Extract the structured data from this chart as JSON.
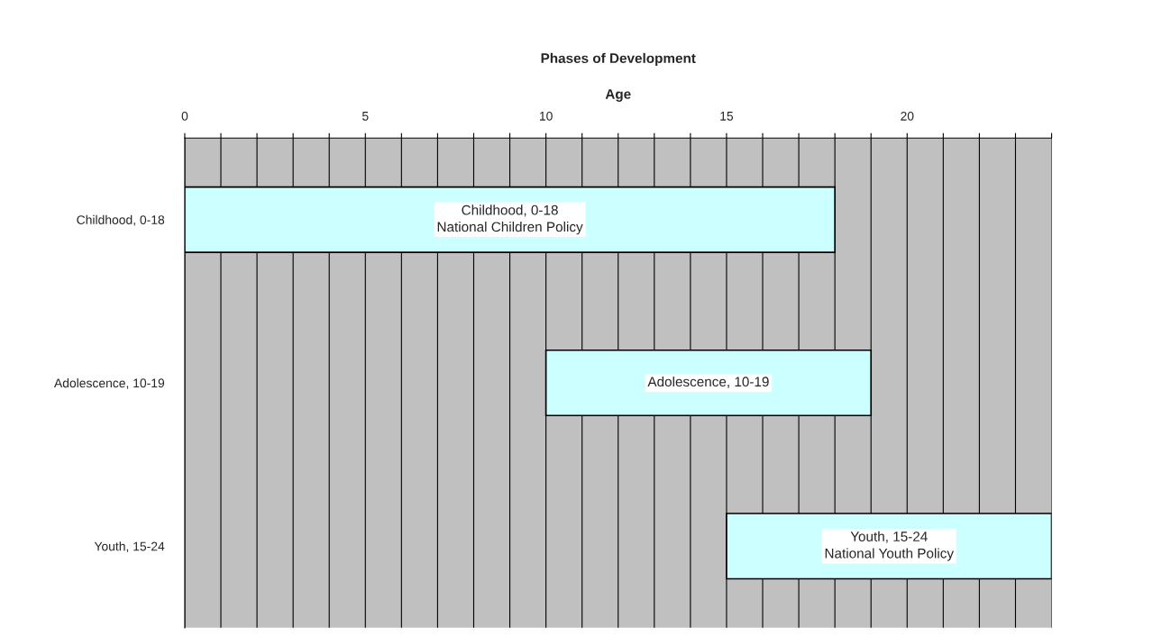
{
  "chart_data": {
    "type": "bar",
    "orientation": "horizontal",
    "title": "Phases of Development",
    "xlabel": "Age",
    "categories": [
      "Childhood, 0-18",
      "Adolescence, 10-19",
      "Youth, 15-24"
    ],
    "base": [
      0,
      10,
      15
    ],
    "values": [
      18,
      9,
      9
    ],
    "color": "#ccffff",
    "xlim": [
      0,
      24
    ],
    "xticks": [
      0,
      {
        "value": 1,
        "label": null
      },
      {
        "value": 2,
        "label": null
      },
      {
        "value": 3,
        "label": null
      },
      {
        "value": 4,
        "label": null
      },
      5,
      {
        "value": 6,
        "label": null
      },
      {
        "value": 7,
        "label": null
      },
      {
        "value": 8,
        "label": null
      },
      {
        "value": 9,
        "label": null
      },
      10,
      {
        "value": 11,
        "label": null
      },
      {
        "value": 12,
        "label": null
      },
      {
        "value": 13,
        "label": null
      },
      {
        "value": 14,
        "label": null
      },
      15,
      {
        "value": 16,
        "label": null
      },
      {
        "value": 17,
        "label": null
      },
      {
        "value": 18,
        "label": null
      },
      {
        "value": 19,
        "label": null
      },
      20,
      {
        "value": 21,
        "label": null
      },
      {
        "value": 22,
        "label": null
      },
      {
        "value": 23,
        "label": null
      },
      {
        "value": 24,
        "label": null
      }
    ],
    "grid": "x",
    "value_labels": [
      "Childhood, 0-18\nNational Children Policy",
      "Adolescence, 10-19",
      "Youth, 15-24\nNational Youth Policy"
    ]
  }
}
